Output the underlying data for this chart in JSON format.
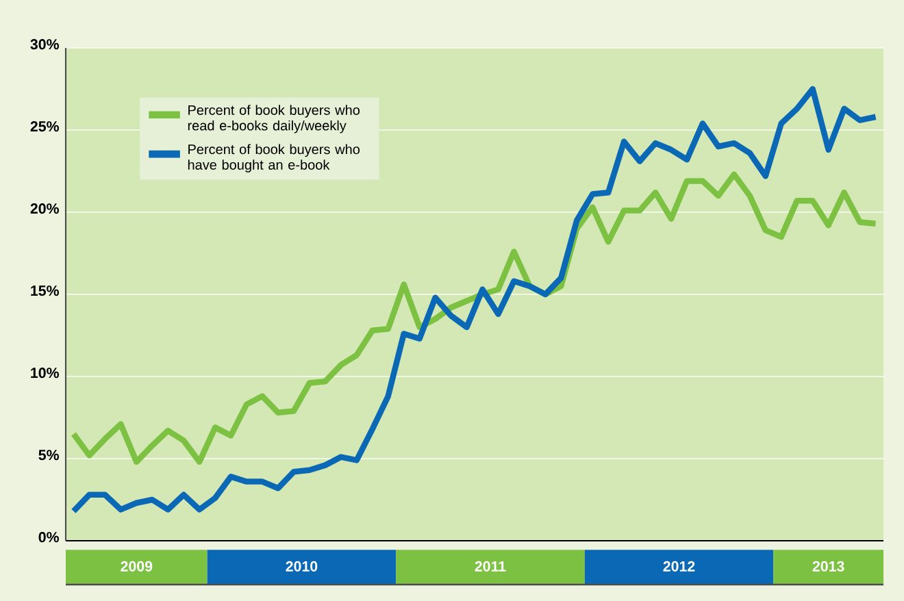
{
  "chart_data": {
    "type": "line",
    "x": [
      "2009-04",
      "2009-05",
      "2009-06",
      "2009-07",
      "2009-08",
      "2009-09",
      "2009-10",
      "2009-11",
      "2009-12",
      "2010-01",
      "2010-02",
      "2010-03",
      "2010-04",
      "2010-05",
      "2010-06",
      "2010-07",
      "2010-08",
      "2010-09",
      "2010-10",
      "2010-11",
      "2010-12",
      "2011-01",
      "2011-02",
      "2011-03",
      "2011-04",
      "2011-05",
      "2011-06",
      "2011-07",
      "2011-08",
      "2011-09",
      "2011-10",
      "2011-11",
      "2011-12",
      "2012-01",
      "2012-02",
      "2012-03",
      "2012-04",
      "2012-05",
      "2012-06",
      "2012-07",
      "2012-08",
      "2012-09",
      "2012-10",
      "2012-11",
      "2012-12",
      "2013-01",
      "2013-02",
      "2013-03",
      "2013-04",
      "2013-05",
      "2013-06",
      "2013-07"
    ],
    "series": [
      {
        "name": "Percent of book buyers who read e-books daily/weekly",
        "color": "#7dc142",
        "values": [
          6.5,
          5.2,
          6.2,
          7.1,
          4.8,
          5.8,
          6.7,
          6.1,
          4.8,
          6.9,
          6.4,
          8.3,
          8.8,
          7.8,
          7.9,
          9.6,
          9.7,
          10.7,
          11.3,
          12.8,
          12.9,
          15.6,
          13.0,
          13.5,
          14.2,
          14.6,
          15.0,
          15.3,
          17.6,
          15.5,
          15.0,
          15.5,
          19.0,
          20.3,
          18.2,
          20.1,
          20.1,
          21.2,
          19.6,
          21.9,
          21.9,
          21.0,
          22.3,
          21.0,
          18.9,
          18.5,
          20.7,
          20.7,
          19.2,
          21.2,
          19.4,
          19.3
        ]
      },
      {
        "name": "Percent of book buyers who have bought an e-book",
        "color": "#0a68b4",
        "values": [
          1.8,
          2.8,
          2.8,
          1.9,
          2.3,
          2.5,
          1.9,
          2.8,
          1.9,
          2.6,
          3.9,
          3.6,
          3.6,
          3.2,
          4.2,
          4.3,
          4.6,
          5.1,
          4.9,
          6.8,
          8.8,
          12.6,
          12.3,
          14.8,
          13.7,
          13.0,
          15.3,
          13.8,
          15.8,
          15.5,
          15.0,
          16.0,
          19.5,
          21.1,
          21.2,
          24.3,
          23.1,
          24.2,
          23.8,
          23.2,
          25.4,
          24.0,
          24.2,
          23.6,
          22.2,
          25.4,
          26.3,
          27.5,
          23.8,
          26.3,
          25.6,
          25.8
        ]
      }
    ],
    "xlim": [
      "2009-03-16",
      "2013-07-16"
    ],
    "xticks": [
      {
        "value": "2009-08-01",
        "label": "2009"
      },
      {
        "value": "2010-06-16",
        "label": "2010"
      },
      {
        "value": "2011-06-16",
        "label": "2011"
      },
      {
        "value": "2012-06-16",
        "label": "2012"
      },
      {
        "value": "2013-04-01",
        "label": "2013"
      }
    ],
    "ylim": [
      0,
      30
    ],
    "yticks": [
      {
        "value": 0,
        "label": "0%"
      },
      {
        "value": 5,
        "label": "5%"
      },
      {
        "value": 10,
        "label": "10%"
      },
      {
        "value": 15,
        "label": "15%"
      },
      {
        "value": 20,
        "label": "20%"
      },
      {
        "value": 25,
        "label": "25%"
      },
      {
        "value": 30,
        "label": "30%"
      }
    ],
    "grid": "y",
    "legend": "top left",
    "line_style": "solid"
  }
}
